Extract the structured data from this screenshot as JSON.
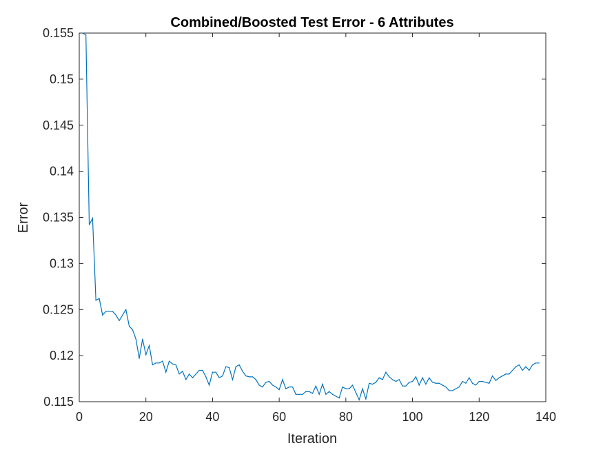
{
  "chart_data": {
    "type": "line",
    "title": "Combined/Boosted Test Error - 6 Attributes",
    "xlabel": "Iteration",
    "ylabel": "Error",
    "xlim": [
      0,
      140
    ],
    "ylim": [
      0.115,
      0.155
    ],
    "xticks": [
      "0",
      "20",
      "40",
      "60",
      "80",
      "100",
      "120",
      "140"
    ],
    "yticks": [
      "0.115",
      "0.12",
      "0.125",
      "0.13",
      "0.135",
      "0.14",
      "0.145",
      "0.15",
      "0.155"
    ],
    "grid": false,
    "legend": "none",
    "series_color": "#0072BD",
    "series": [
      {
        "x": [
          1,
          2,
          3,
          4,
          5,
          6,
          7,
          8,
          9,
          10,
          11,
          12,
          13,
          14,
          15,
          16,
          17,
          18,
          19,
          20,
          21,
          22,
          23,
          24,
          25,
          26,
          27,
          28,
          29,
          30,
          31,
          32,
          33,
          34,
          35,
          36,
          37,
          38,
          39,
          40,
          41,
          42,
          43,
          44,
          45,
          46,
          47,
          48,
          49,
          50,
          51,
          52,
          53,
          54,
          55,
          56,
          57,
          58,
          59,
          60,
          61,
          62,
          63,
          64,
          65,
          66,
          67,
          68,
          69,
          70,
          71,
          72,
          73,
          74,
          75,
          76,
          77,
          78,
          79,
          80,
          81,
          82,
          83,
          84,
          85,
          86,
          87,
          88,
          89,
          90,
          91,
          92,
          93,
          94,
          95,
          96,
          97,
          98,
          99,
          100,
          101,
          102,
          103,
          104,
          105,
          106,
          107,
          108,
          109,
          110,
          111,
          112,
          113,
          114,
          115,
          116,
          117,
          118,
          119,
          120,
          121,
          122,
          123,
          124,
          125,
          126,
          127,
          128,
          129,
          130,
          131,
          132,
          133,
          134,
          135,
          136,
          137,
          138
        ],
        "values": [
          0.155,
          0.1548,
          0.1342,
          0.1349,
          0.126,
          0.1262,
          0.1244,
          0.1248,
          0.1248,
          0.1248,
          0.1244,
          0.1238,
          0.1244,
          0.125,
          0.1232,
          0.1228,
          0.1218,
          0.1197,
          0.1218,
          0.1201,
          0.1211,
          0.119,
          0.1192,
          0.1192,
          0.1194,
          0.1182,
          0.1194,
          0.1191,
          0.119,
          0.118,
          0.1183,
          0.1174,
          0.118,
          0.1176,
          0.118,
          0.1184,
          0.1184,
          0.1177,
          0.1168,
          0.1182,
          0.1182,
          0.1176,
          0.1178,
          0.1188,
          0.1187,
          0.1174,
          0.1188,
          0.119,
          0.1183,
          0.1178,
          0.1177,
          0.1177,
          0.1174,
          0.1168,
          0.1166,
          0.1171,
          0.1172,
          0.1168,
          0.1166,
          0.1163,
          0.1174,
          0.1164,
          0.1166,
          0.1166,
          0.1158,
          0.1158,
          0.1158,
          0.1161,
          0.1161,
          0.1159,
          0.1167,
          0.1158,
          0.1169,
          0.1158,
          0.1161,
          0.1158,
          0.1156,
          0.1154,
          0.1166,
          0.1164,
          0.1164,
          0.1168,
          0.116,
          0.1152,
          0.1164,
          0.1153,
          0.117,
          0.1169,
          0.1171,
          0.1176,
          0.1174,
          0.1182,
          0.1177,
          0.1174,
          0.1172,
          0.1174,
          0.1167,
          0.1167,
          0.1171,
          0.1172,
          0.1177,
          0.1168,
          0.1176,
          0.1169,
          0.1176,
          0.1171,
          0.117,
          0.117,
          0.1168,
          0.1166,
          0.1162,
          0.1162,
          0.1164,
          0.1166,
          0.1172,
          0.117,
          0.1176,
          0.117,
          0.1168,
          0.1172,
          0.1172,
          0.1171,
          0.117,
          0.1178,
          0.1173,
          0.1176,
          0.1178,
          0.118,
          0.118,
          0.1184,
          0.1188,
          0.119,
          0.1184,
          0.1188,
          0.1184,
          0.119,
          0.1192,
          0.1192
        ]
      }
    ]
  }
}
